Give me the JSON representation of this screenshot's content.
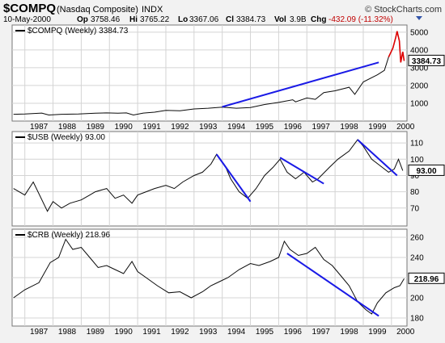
{
  "header": {
    "symbol": "$COMPQ",
    "name": "(Nasdaq Composite)",
    "exchange": "INDX",
    "credit": "© StockCharts.com",
    "date": "10-May-2000",
    "op_label": "Op",
    "op": "3758.46",
    "hi_label": "Hi",
    "hi": "3765.22",
    "lo_label": "Lo",
    "lo": "3367.06",
    "cl_label": "Cl",
    "cl": "3384.73",
    "vol_label": "Vol",
    "vol": "3.9B",
    "chg_label": "Chg",
    "chg": "-432.09 (-11.32%)"
  },
  "chart_data": [
    {
      "type": "line",
      "title": "$COMPQ (Weekly) 3384.73",
      "last_value": "3384.73",
      "x_ticks": [
        "1987",
        "1988",
        "1989",
        "1990",
        "1991",
        "1992",
        "1993",
        "1994",
        "1995",
        "1996",
        "1997",
        "1998",
        "1999",
        "2000"
      ],
      "y_ticks": [
        1000,
        2000,
        3000,
        4000,
        5000
      ],
      "ylim": [
        0,
        5400
      ],
      "series": [
        {
          "points": [
            [
              1986.6,
              380
            ],
            [
              1987.0,
              400
            ],
            [
              1987.6,
              450
            ],
            [
              1987.85,
              340
            ],
            [
              1988.3,
              380
            ],
            [
              1988.9,
              400
            ],
            [
              1989.5,
              440
            ],
            [
              1989.9,
              460
            ],
            [
              1990.3,
              440
            ],
            [
              1990.6,
              460
            ],
            [
              1990.85,
              340
            ],
            [
              1991.2,
              450
            ],
            [
              1991.6,
              500
            ],
            [
              1992.0,
              600
            ],
            [
              1992.5,
              580
            ],
            [
              1993.0,
              680
            ],
            [
              1993.5,
              720
            ],
            [
              1994.0,
              780
            ],
            [
              1994.5,
              720
            ],
            [
              1995.0,
              760
            ],
            [
              1995.5,
              930
            ],
            [
              1996.0,
              1050
            ],
            [
              1996.5,
              1200
            ],
            [
              1996.6,
              1080
            ],
            [
              1997.0,
              1300
            ],
            [
              1997.3,
              1220
            ],
            [
              1997.6,
              1600
            ],
            [
              1998.0,
              1700
            ],
            [
              1998.5,
              1900
            ],
            [
              1998.7,
              1500
            ],
            [
              1999.0,
              2200
            ],
            [
              1999.5,
              2600
            ],
            [
              1999.75,
              2850
            ],
            [
              1999.9,
              3600
            ],
            [
              2000.05,
              4100
            ],
            [
              2000.15,
              4700
            ],
            [
              2000.2,
              5050
            ],
            [
              2000.28,
              4500
            ],
            [
              2000.33,
              3300
            ],
            [
              2000.4,
              3900
            ],
            [
              2000.45,
              3384.73
            ]
          ]
        }
      ],
      "trendlines": [
        [
          [
            1994.0,
            800
          ],
          [
            1999.55,
            3300
          ]
        ]
      ]
    },
    {
      "type": "line",
      "title": "$USB (Weekly) 93.00",
      "last_value": "93.00",
      "x_ticks": [],
      "y_ticks": [
        70,
        80,
        90,
        100,
        110
      ],
      "ylim": [
        59,
        117
      ],
      "series": [
        {
          "points": [
            [
              1986.6,
              82
            ],
            [
              1987.0,
              78
            ],
            [
              1987.3,
              86
            ],
            [
              1987.8,
              68
            ],
            [
              1988.0,
              74
            ],
            [
              1988.3,
              70
            ],
            [
              1988.6,
              73
            ],
            [
              1989.0,
              75
            ],
            [
              1989.3,
              78
            ],
            [
              1989.5,
              80
            ],
            [
              1989.9,
              82
            ],
            [
              1990.2,
              76
            ],
            [
              1990.5,
              78
            ],
            [
              1990.8,
              73
            ],
            [
              1991.0,
              78
            ],
            [
              1991.3,
              80
            ],
            [
              1991.6,
              82
            ],
            [
              1992.0,
              84
            ],
            [
              1992.3,
              82
            ],
            [
              1992.6,
              86
            ],
            [
              1993.0,
              90
            ],
            [
              1993.3,
              92
            ],
            [
              1993.6,
              97
            ],
            [
              1993.8,
              103
            ],
            [
              1994.1,
              96
            ],
            [
              1994.3,
              88
            ],
            [
              1994.6,
              80
            ],
            [
              1994.9,
              76
            ],
            [
              1995.2,
              82
            ],
            [
              1995.5,
              90
            ],
            [
              1995.8,
              95
            ],
            [
              1996.05,
              100
            ],
            [
              1996.3,
              92
            ],
            [
              1996.6,
              88
            ],
            [
              1996.9,
              92
            ],
            [
              1997.2,
              86
            ],
            [
              1997.4,
              88
            ],
            [
              1997.8,
              95
            ],
            [
              1998.1,
              100
            ],
            [
              1998.5,
              105
            ],
            [
              1998.8,
              112
            ],
            [
              1999.0,
              108
            ],
            [
              1999.3,
              100
            ],
            [
              1999.6,
              96
            ],
            [
              1999.9,
              92
            ],
            [
              2000.1,
              94
            ],
            [
              2000.25,
              100
            ],
            [
              2000.4,
              93
            ]
          ]
        }
      ],
      "trendlines": [
        [
          [
            1993.8,
            103
          ],
          [
            1995.0,
            74
          ]
        ],
        [
          [
            1996.05,
            101
          ],
          [
            1997.6,
            85
          ]
        ],
        [
          [
            1998.8,
            112
          ],
          [
            2000.2,
            90
          ]
        ]
      ]
    },
    {
      "type": "line",
      "title": "$CRB (Weekly) 218.96",
      "last_value": "218.96",
      "x_ticks": [
        "1987",
        "1988",
        "1989",
        "1990",
        "1991",
        "1992",
        "1993",
        "1994",
        "1995",
        "1996",
        "1997",
        "1998",
        "1999",
        "2000"
      ],
      "y_ticks": [
        180,
        200,
        220,
        240,
        260
      ],
      "ylim": [
        172,
        268
      ],
      "series": [
        {
          "points": [
            [
              1986.6,
              200
            ],
            [
              1987.0,
              208
            ],
            [
              1987.5,
              215
            ],
            [
              1987.9,
              235
            ],
            [
              1988.2,
              240
            ],
            [
              1988.45,
              258
            ],
            [
              1988.7,
              248
            ],
            [
              1989.0,
              250
            ],
            [
              1989.3,
              240
            ],
            [
              1989.6,
              230
            ],
            [
              1989.9,
              232
            ],
            [
              1990.2,
              228
            ],
            [
              1990.5,
              224
            ],
            [
              1990.8,
              236
            ],
            [
              1991.0,
              226
            ],
            [
              1991.3,
              220
            ],
            [
              1991.7,
              212
            ],
            [
              1992.1,
              205
            ],
            [
              1992.5,
              206
            ],
            [
              1992.9,
              200
            ],
            [
              1993.3,
              206
            ],
            [
              1993.6,
              212
            ],
            [
              1993.9,
              216
            ],
            [
              1994.2,
              220
            ],
            [
              1994.6,
              228
            ],
            [
              1995.0,
              234
            ],
            [
              1995.3,
              232
            ],
            [
              1995.7,
              236
            ],
            [
              1996.0,
              240
            ],
            [
              1996.2,
              256
            ],
            [
              1996.4,
              248
            ],
            [
              1996.7,
              242
            ],
            [
              1997.0,
              244
            ],
            [
              1997.3,
              250
            ],
            [
              1997.6,
              238
            ],
            [
              1997.9,
              232
            ],
            [
              1998.2,
              222
            ],
            [
              1998.5,
              212
            ],
            [
              1998.8,
              196
            ],
            [
              1999.1,
              188
            ],
            [
              1999.3,
              184
            ],
            [
              1999.5,
              195
            ],
            [
              1999.8,
              205
            ],
            [
              2000.1,
              210
            ],
            [
              2000.3,
              212
            ],
            [
              2000.45,
              218.96
            ]
          ]
        }
      ],
      "trendlines": [
        [
          [
            1996.3,
            244
          ],
          [
            1999.55,
            182
          ]
        ]
      ]
    }
  ]
}
